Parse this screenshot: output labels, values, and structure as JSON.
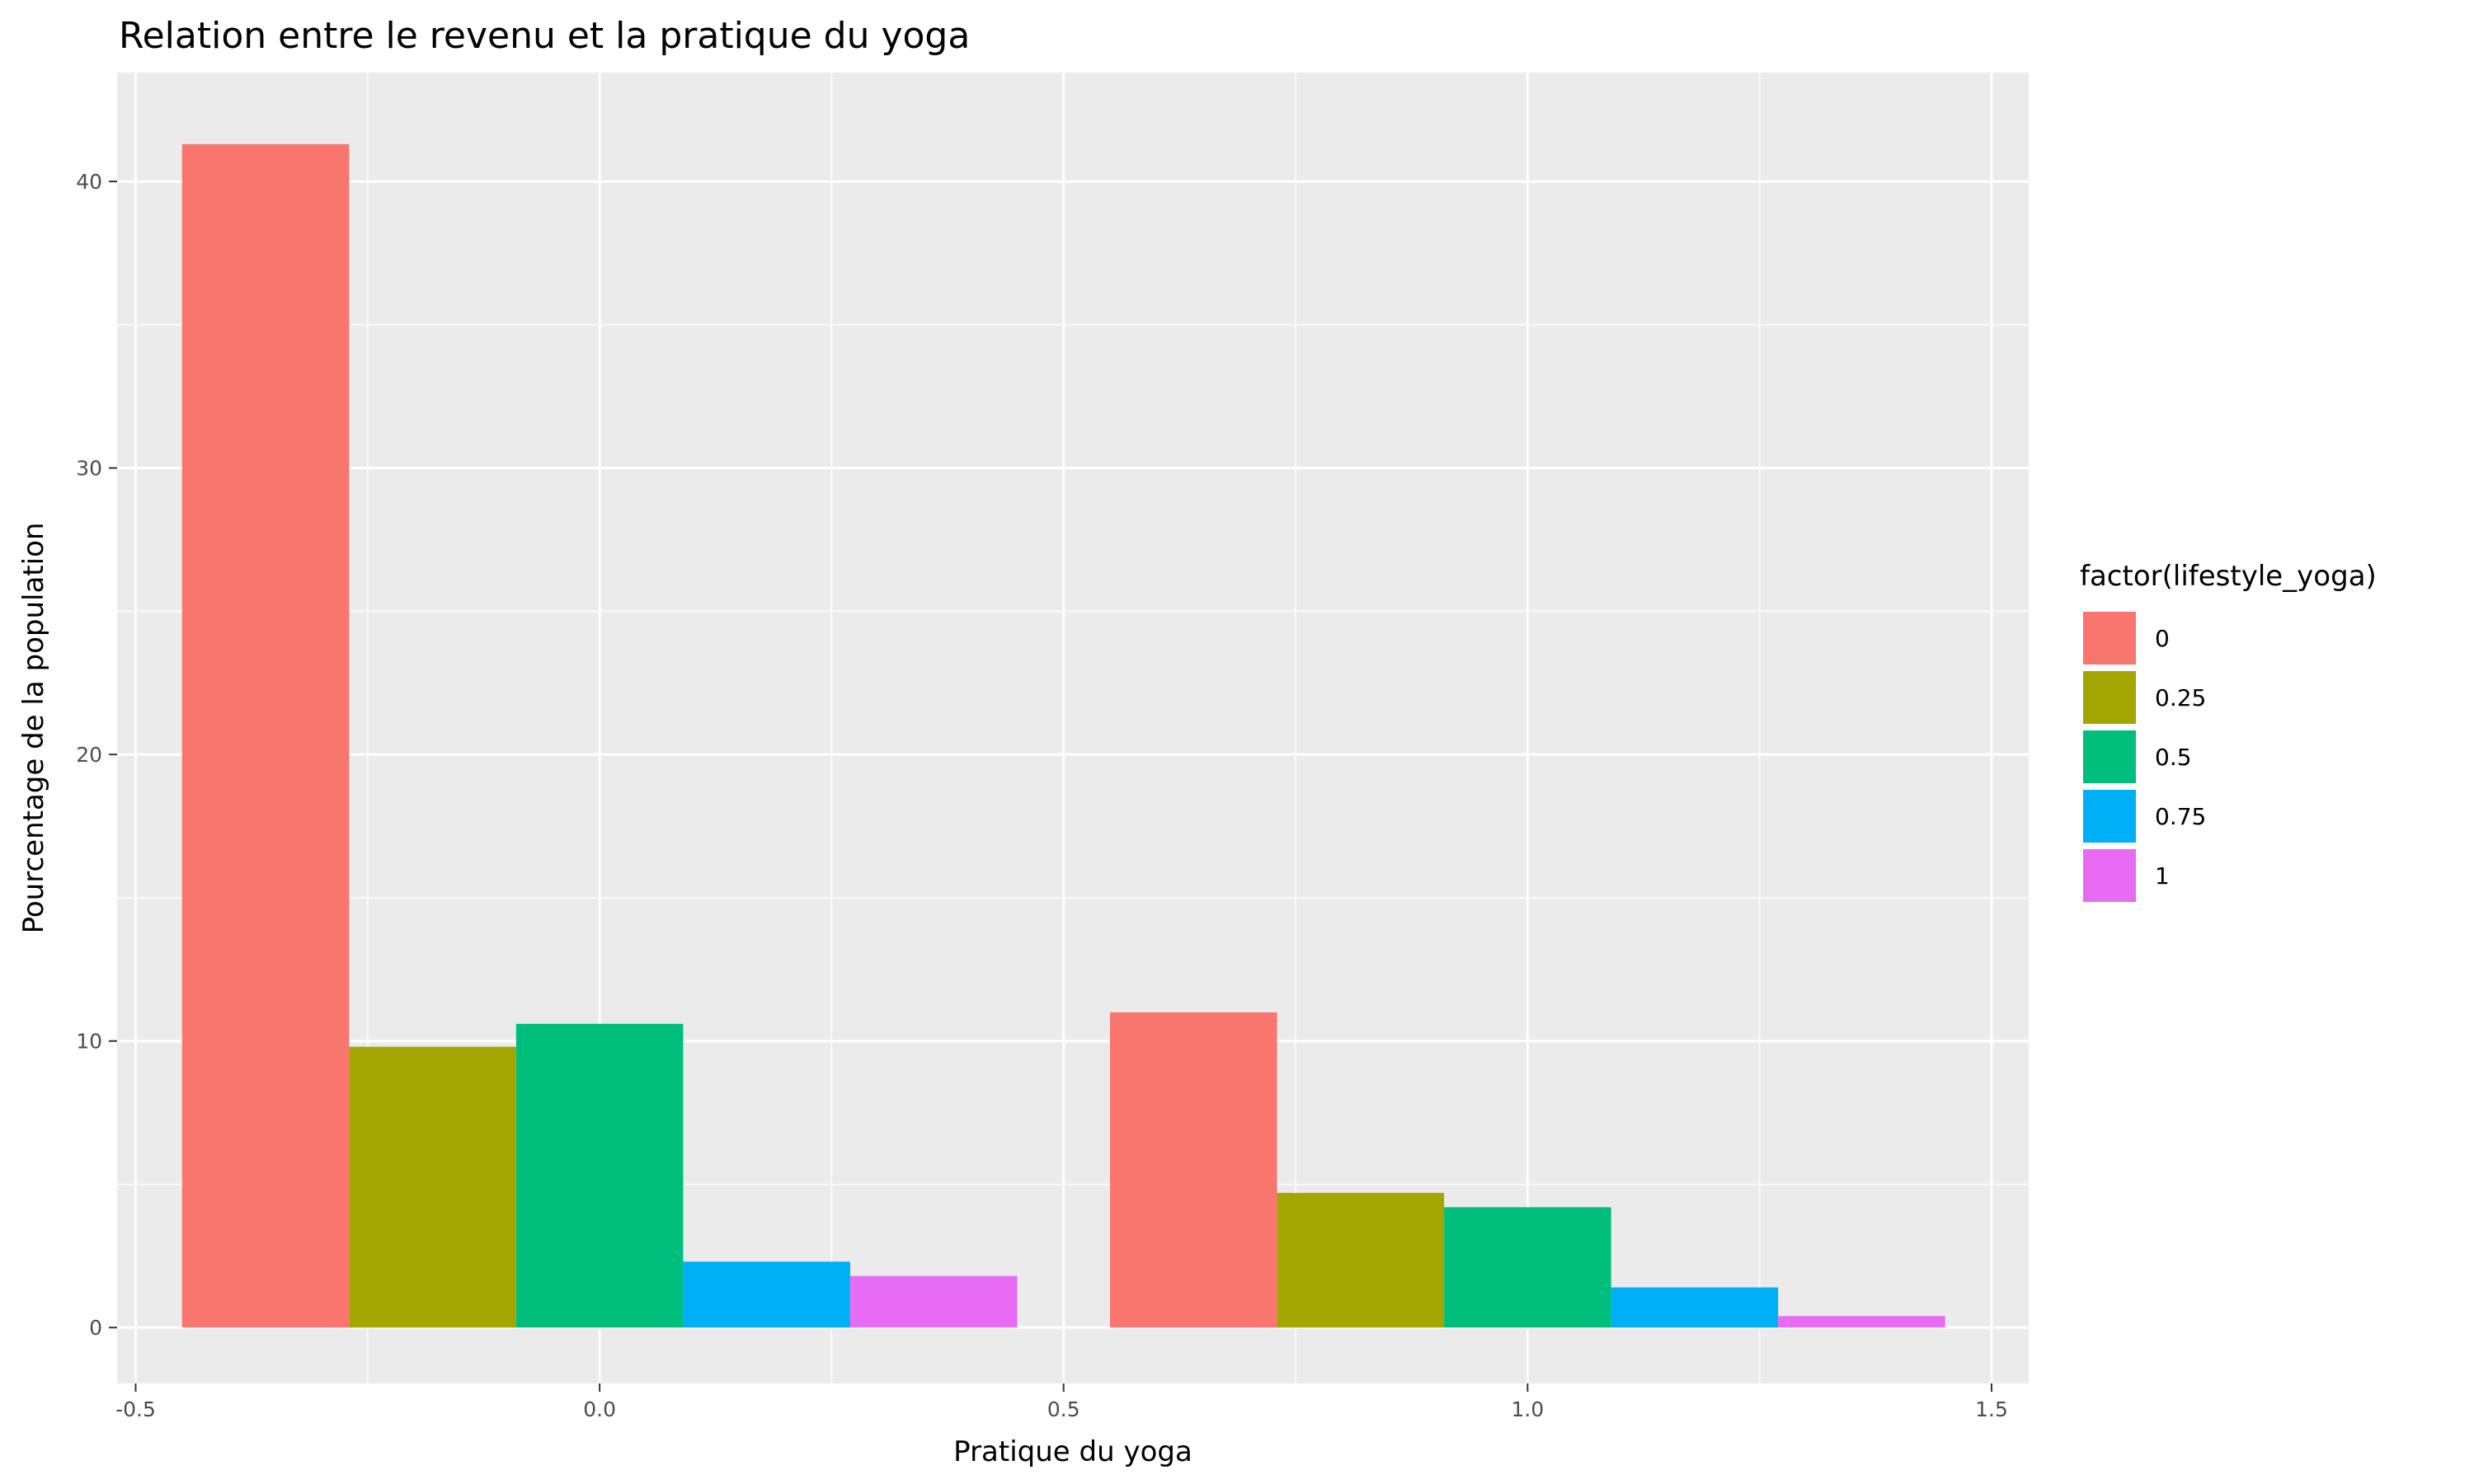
{
  "chart_data": {
    "type": "bar",
    "title": "Relation entre le revenu et la pratique du yoga",
    "xlabel": "Pratique du yoga",
    "ylabel": "Pourcentage de la population",
    "xlim": [
      -0.52,
      1.54
    ],
    "ylim": [
      -1.95,
      43.8
    ],
    "x_ticks": [
      -0.5,
      0.0,
      0.5,
      1.0,
      1.5
    ],
    "x_tick_labels": [
      "-0.5",
      "0.0",
      "0.5",
      "1.0",
      "1.5"
    ],
    "y_ticks": [
      0,
      10,
      20,
      30,
      40
    ],
    "y_tick_labels": [
      "0",
      "10",
      "20",
      "30",
      "40"
    ],
    "bar_group_width": 0.9,
    "x": [
      0,
      1
    ],
    "series": [
      {
        "name": "0",
        "color": "#F8766D",
        "values": [
          41.3,
          11.0
        ]
      },
      {
        "name": "0.25",
        "color": "#A3A500",
        "values": [
          9.8,
          4.7
        ]
      },
      {
        "name": "0.5",
        "color": "#00BF7D",
        "values": [
          10.6,
          4.2
        ]
      },
      {
        "name": "0.75",
        "color": "#00B0F6",
        "values": [
          2.3,
          1.4
        ]
      },
      {
        "name": "1",
        "color": "#E76BF3",
        "values": [
          1.8,
          0.4
        ]
      }
    ],
    "legend": {
      "title": "factor(lifestyle_yoga)",
      "position": "right"
    },
    "panel_background": "#EBEBEB",
    "grid": true,
    "grid_color": "#FFFFFF"
  }
}
